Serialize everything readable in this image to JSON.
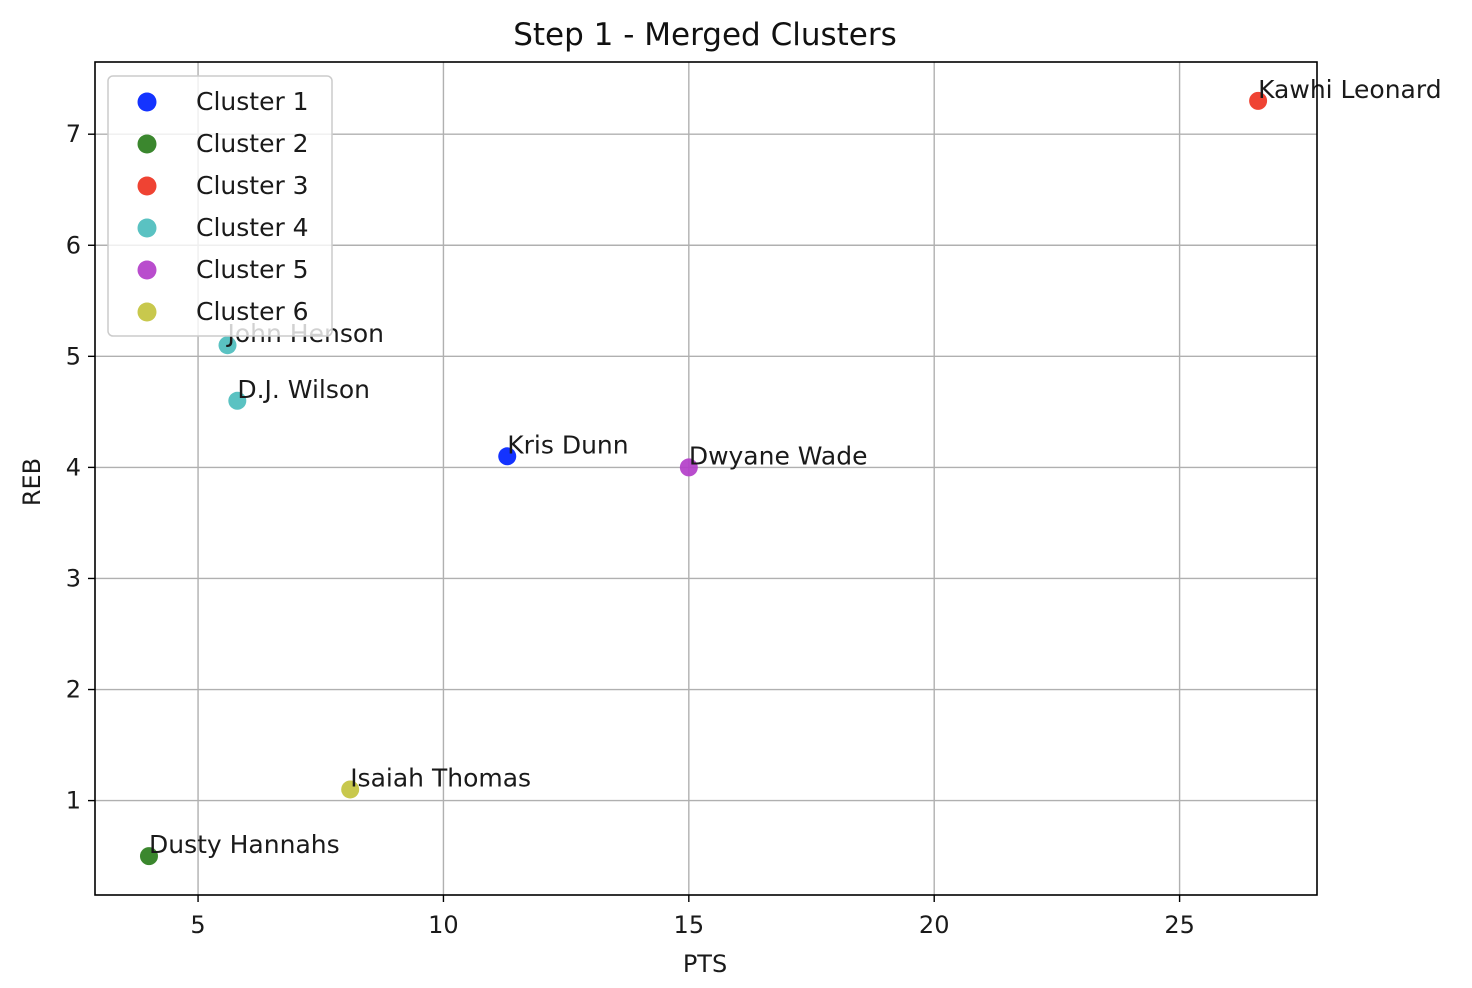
{
  "chart_data": {
    "type": "scatter",
    "title": "Step 1 - Merged Clusters",
    "xlabel": "PTS",
    "ylabel": "REB",
    "xlim": [
      2.9,
      27.8
    ],
    "ylim": [
      0.15,
      7.65
    ],
    "xticks": [
      5,
      10,
      15,
      20,
      25
    ],
    "yticks": [
      1,
      2,
      3,
      4,
      5,
      6,
      7
    ],
    "grid": true,
    "legend_position": "upper-left",
    "series": [
      {
        "name": "Cluster 1",
        "color": "#0022ff",
        "points": [
          {
            "x": 11.3,
            "y": 4.1,
            "label": "Kris Dunn"
          }
        ]
      },
      {
        "name": "Cluster 2",
        "color": "#2a7d1c",
        "points": [
          {
            "x": 4.0,
            "y": 0.5,
            "label": "Dusty Hannahs"
          }
        ]
      },
      {
        "name": "Cluster 3",
        "color": "#ee3322",
        "points": [
          {
            "x": 26.6,
            "y": 7.3,
            "label": "Kawhi Leonard"
          }
        ]
      },
      {
        "name": "Cluster 4",
        "color": "#4cbdbd",
        "points": [
          {
            "x": 5.6,
            "y": 5.1,
            "label": "John Henson"
          },
          {
            "x": 5.8,
            "y": 4.6,
            "label": "D.J. Wilson"
          }
        ]
      },
      {
        "name": "Cluster 5",
        "color": "#b33ec9",
        "points": [
          {
            "x": 15.0,
            "y": 4.0,
            "label": "Dwyane Wade"
          }
        ]
      },
      {
        "name": "Cluster 6",
        "color": "#c3c33e",
        "points": [
          {
            "x": 8.1,
            "y": 1.1,
            "label": "Isaiah Thomas"
          }
        ]
      }
    ]
  }
}
